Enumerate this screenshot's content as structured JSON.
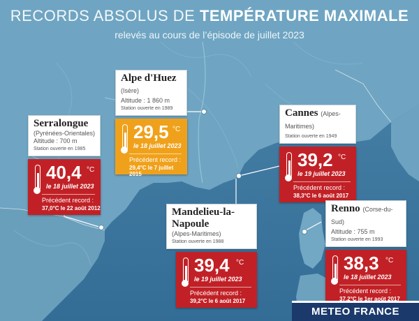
{
  "title": {
    "light": "RECORDS ABSOLUS DE",
    "bold": "TEMPÉRATURE MAXIMALE"
  },
  "subtitle": "relevés au cours de l’épisode de juillet 2023",
  "stations": {
    "alpe": {
      "name": "Alpe d'Huez",
      "region": "(Isère)",
      "altitude": "Altitude : 1 860 m",
      "since": "Station ouverte en 1989",
      "value": "29,5",
      "unit": "°C",
      "date": "le 18 juillet 2023",
      "prev_label": "Précédent record :",
      "prev_value": "29,4°C le 7 juillet 2015",
      "color": "#f0a11b"
    },
    "serralongue": {
      "name": "Serralongue",
      "region": "(Pyrénées-Orientales)",
      "altitude": "Altitude : 700 m",
      "since": "Station ouverte en 1985",
      "value": "40,4",
      "unit": "°C",
      "date": "le 18 juillet 2023",
      "prev_label": "Précédent record :",
      "prev_value": "37,0°C le 22 août 2012",
      "color": "#c12126"
    },
    "cannes": {
      "name": "Cannes",
      "region": "(Alpes-Maritimes)",
      "since": "Station ouverte en 1949",
      "value": "39,2",
      "unit": "°C",
      "date": "le 19 juillet 2023",
      "prev_label": "Précédent record :",
      "prev_value": "38,3°C le 6 août 2017",
      "color": "#c12126"
    },
    "mandelieu": {
      "name": "Mandelieu-la-Napoule",
      "region": "(Alpes-Maritimes)",
      "since": "Station ouverte en 1988",
      "value": "39,4",
      "unit": "°C",
      "date": "le 19 juillet 2023",
      "prev_label": "Précédent record :",
      "prev_value": "39,2°C le 6 août 2017",
      "color": "#c12126"
    },
    "renno": {
      "name": "Renno",
      "region": "(Corse-du-Sud)",
      "altitude": "Altitude : 755 m",
      "since": "Station ouverte en 1993",
      "value": "38,3",
      "unit": "°C",
      "date": "le 18 juillet 2023",
      "prev_label": "Précédent record :",
      "prev_value": "37,2°C le 1er août 2017",
      "color": "#c12126"
    }
  },
  "brand": "METEO FRANCE",
  "colors": {
    "sea": "#3f79a1",
    "land": "#6ea3c0",
    "record_red": "#c12126",
    "record_orange": "#f0a11b",
    "brand_blue": "#1b3a6b"
  },
  "icons": [
    "thermometer-icon",
    "location-marker-icon"
  ]
}
